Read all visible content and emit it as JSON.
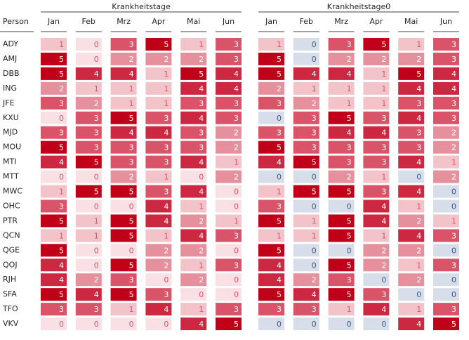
{
  "row_header": "Person",
  "persons": [
    "ADY",
    "AMJ",
    "DBB",
    "ING",
    "JFE",
    "KXU",
    "MJD",
    "MOU",
    "MTI",
    "MTT",
    "MWC",
    "OHC",
    "PTR",
    "QCN",
    "QGE",
    "QOJ",
    "RJH",
    "SFA",
    "TFO",
    "VKV"
  ],
  "groups": [
    {
      "title": "Krankheitstage",
      "months": [
        "Jan",
        "Feb",
        "Mrz",
        "Apr",
        "Mai",
        "Jun"
      ],
      "scale": [
        "#f9e0e4",
        "#f3c3ca",
        "#e68f9d",
        "#d95468",
        "#cc2841",
        "#c00019"
      ],
      "text_colors": [
        "#d9546a",
        "#d9546a",
        "#ffffff",
        "#ffffff",
        "#ffffff",
        "#ffffff"
      ],
      "values": [
        [
          1,
          0,
          3,
          5,
          1,
          3
        ],
        [
          5,
          0,
          2,
          2,
          2,
          3
        ],
        [
          5,
          4,
          4,
          1,
          5,
          4
        ],
        [
          2,
          1,
          1,
          1,
          4,
          4
        ],
        [
          3,
          2,
          1,
          1,
          3,
          3
        ],
        [
          0,
          3,
          5,
          3,
          4,
          3
        ],
        [
          3,
          3,
          4,
          4,
          3,
          2
        ],
        [
          5,
          3,
          3,
          3,
          3,
          2
        ],
        [
          4,
          5,
          3,
          3,
          4,
          1
        ],
        [
          0,
          0,
          2,
          1,
          0,
          2
        ],
        [
          1,
          5,
          5,
          3,
          4,
          0
        ],
        [
          3,
          0,
          0,
          4,
          1,
          0
        ],
        [
          5,
          1,
          5,
          4,
          2,
          1
        ],
        [
          1,
          1,
          5,
          1,
          4,
          3
        ],
        [
          5,
          0,
          0,
          2,
          2,
          0
        ],
        [
          4,
          0,
          5,
          2,
          1,
          3
        ],
        [
          4,
          2,
          3,
          0,
          2,
          0
        ],
        [
          5,
          4,
          5,
          3,
          0,
          0
        ],
        [
          3,
          3,
          1,
          4,
          1,
          3
        ],
        [
          0,
          0,
          0,
          0,
          4,
          5
        ]
      ]
    },
    {
      "title": "Krankheitstage0",
      "months": [
        "Jan",
        "Feb",
        "Mrz",
        "Apr",
        "Mai",
        "Jun"
      ],
      "scale": [
        "#d8dee9",
        "#f3c3ca",
        "#e68f9d",
        "#d95468",
        "#cc2841",
        "#c00019"
      ],
      "text_colors": [
        "#3a5a8c",
        "#d9546a",
        "#ffffff",
        "#ffffff",
        "#ffffff",
        "#ffffff"
      ],
      "values": [
        [
          1,
          0,
          3,
          5,
          1,
          3
        ],
        [
          5,
          0,
          2,
          2,
          2,
          3
        ],
        [
          5,
          4,
          4,
          1,
          5,
          4
        ],
        [
          2,
          1,
          1,
          1,
          4,
          4
        ],
        [
          3,
          2,
          1,
          1,
          3,
          3
        ],
        [
          0,
          3,
          5,
          3,
          4,
          3
        ],
        [
          3,
          3,
          4,
          4,
          3,
          2
        ],
        [
          5,
          3,
          3,
          3,
          3,
          2
        ],
        [
          4,
          5,
          3,
          3,
          4,
          1
        ],
        [
          0,
          0,
          2,
          1,
          0,
          2
        ],
        [
          1,
          5,
          5,
          3,
          4,
          0
        ],
        [
          3,
          0,
          0,
          4,
          1,
          0
        ],
        [
          5,
          1,
          5,
          4,
          2,
          1
        ],
        [
          1,
          1,
          5,
          1,
          4,
          3
        ],
        [
          5,
          0,
          0,
          2,
          2,
          0
        ],
        [
          4,
          0,
          5,
          2,
          1,
          3
        ],
        [
          4,
          2,
          3,
          0,
          2,
          0
        ],
        [
          5,
          4,
          5,
          3,
          0,
          0
        ],
        [
          3,
          3,
          1,
          4,
          1,
          3
        ],
        [
          0,
          0,
          0,
          0,
          4,
          5
        ]
      ]
    }
  ]
}
